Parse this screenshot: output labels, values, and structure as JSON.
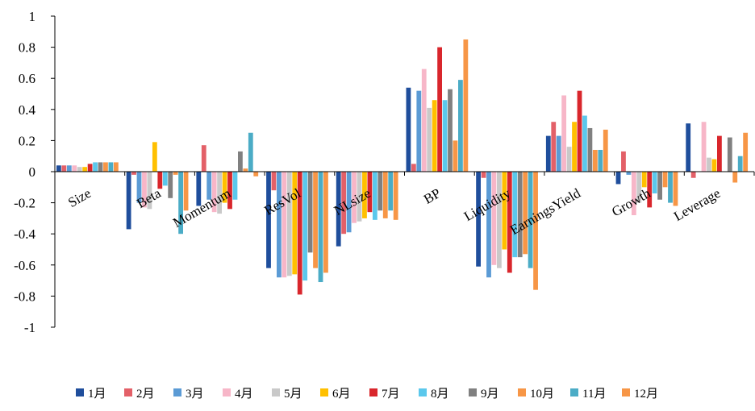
{
  "chart_data": {
    "type": "bar",
    "title": "",
    "xlabel": "",
    "ylabel": "",
    "ylim": [
      -1,
      1
    ],
    "yticks": [
      1,
      0.8,
      0.6,
      0.4,
      0.2,
      0,
      -0.2,
      -0.4,
      -0.6,
      -0.8,
      -1
    ],
    "ytick_labels": [
      "1",
      "0.8",
      "0.6",
      "0.4",
      "0.2",
      "0",
      "-0.2",
      "-0.4",
      "-0.6",
      "-0.8",
      "-1"
    ],
    "categories": [
      "Size",
      "Beta",
      "Momentum",
      "ResVol",
      "NLsize",
      "BP",
      "Liquidity",
      "EarningsYield",
      "Growth",
      "Leverage"
    ],
    "legend_position": "bottom",
    "grid": false,
    "series": [
      {
        "name": "1月",
        "color": "#1f4e9c",
        "values": [
          0.04,
          -0.37,
          -0.22,
          -0.62,
          -0.48,
          0.54,
          -0.61,
          0.23,
          -0.08,
          0.31
        ]
      },
      {
        "name": "2月",
        "color": "#e36068",
        "values": [
          0.04,
          -0.02,
          0.17,
          -0.12,
          -0.4,
          0.05,
          -0.04,
          0.32,
          0.13,
          -0.04
        ]
      },
      {
        "name": "3月",
        "color": "#5b9bd5",
        "values": [
          0.04,
          -0.2,
          -0.18,
          -0.68,
          -0.39,
          0.52,
          -0.68,
          0.23,
          -0.02,
          0.0
        ]
      },
      {
        "name": "4月",
        "color": "#f7b6c8",
        "values": [
          0.04,
          -0.23,
          -0.26,
          -0.68,
          -0.33,
          0.66,
          -0.6,
          0.49,
          -0.28,
          0.32
        ]
      },
      {
        "name": "5月",
        "color": "#c9c9c9",
        "values": [
          0.03,
          -0.24,
          -0.27,
          -0.67,
          -0.32,
          0.41,
          -0.62,
          0.16,
          -0.2,
          0.09
        ]
      },
      {
        "name": "6月",
        "color": "#ffc000",
        "values": [
          0.03,
          0.19,
          -0.2,
          -0.66,
          -0.3,
          0.46,
          -0.5,
          0.32,
          -0.1,
          0.08
        ]
      },
      {
        "name": "7月",
        "color": "#d9262c",
        "values": [
          0.05,
          -0.11,
          -0.24,
          -0.79,
          -0.26,
          0.8,
          -0.65,
          0.52,
          -0.23,
          0.23
        ]
      },
      {
        "name": "8月",
        "color": "#5bc8ec",
        "values": [
          0.06,
          -0.09,
          -0.18,
          -0.7,
          -0.31,
          0.46,
          -0.55,
          0.36,
          -0.14,
          0.0
        ]
      },
      {
        "name": "9月",
        "color": "#808080",
        "values": [
          0.06,
          -0.17,
          0.13,
          -0.52,
          -0.25,
          0.53,
          -0.55,
          0.28,
          -0.18,
          0.22
        ]
      },
      {
        "name": "10月",
        "color": "#f79646",
        "values": [
          0.06,
          -0.02,
          0.02,
          -0.62,
          -0.3,
          0.2,
          -0.53,
          0.14,
          -0.1,
          -0.07
        ]
      },
      {
        "name": "11月",
        "color": "#4bacc6",
        "values": [
          0.06,
          -0.4,
          0.25,
          -0.71,
          -0.25,
          0.59,
          -0.62,
          0.14,
          -0.2,
          0.1
        ]
      },
      {
        "name": "12月",
        "color": "#f79646",
        "values": [
          0.06,
          -0.25,
          -0.03,
          -0.65,
          -0.31,
          0.85,
          -0.76,
          0.27,
          -0.22,
          0.25
        ]
      }
    ]
  }
}
